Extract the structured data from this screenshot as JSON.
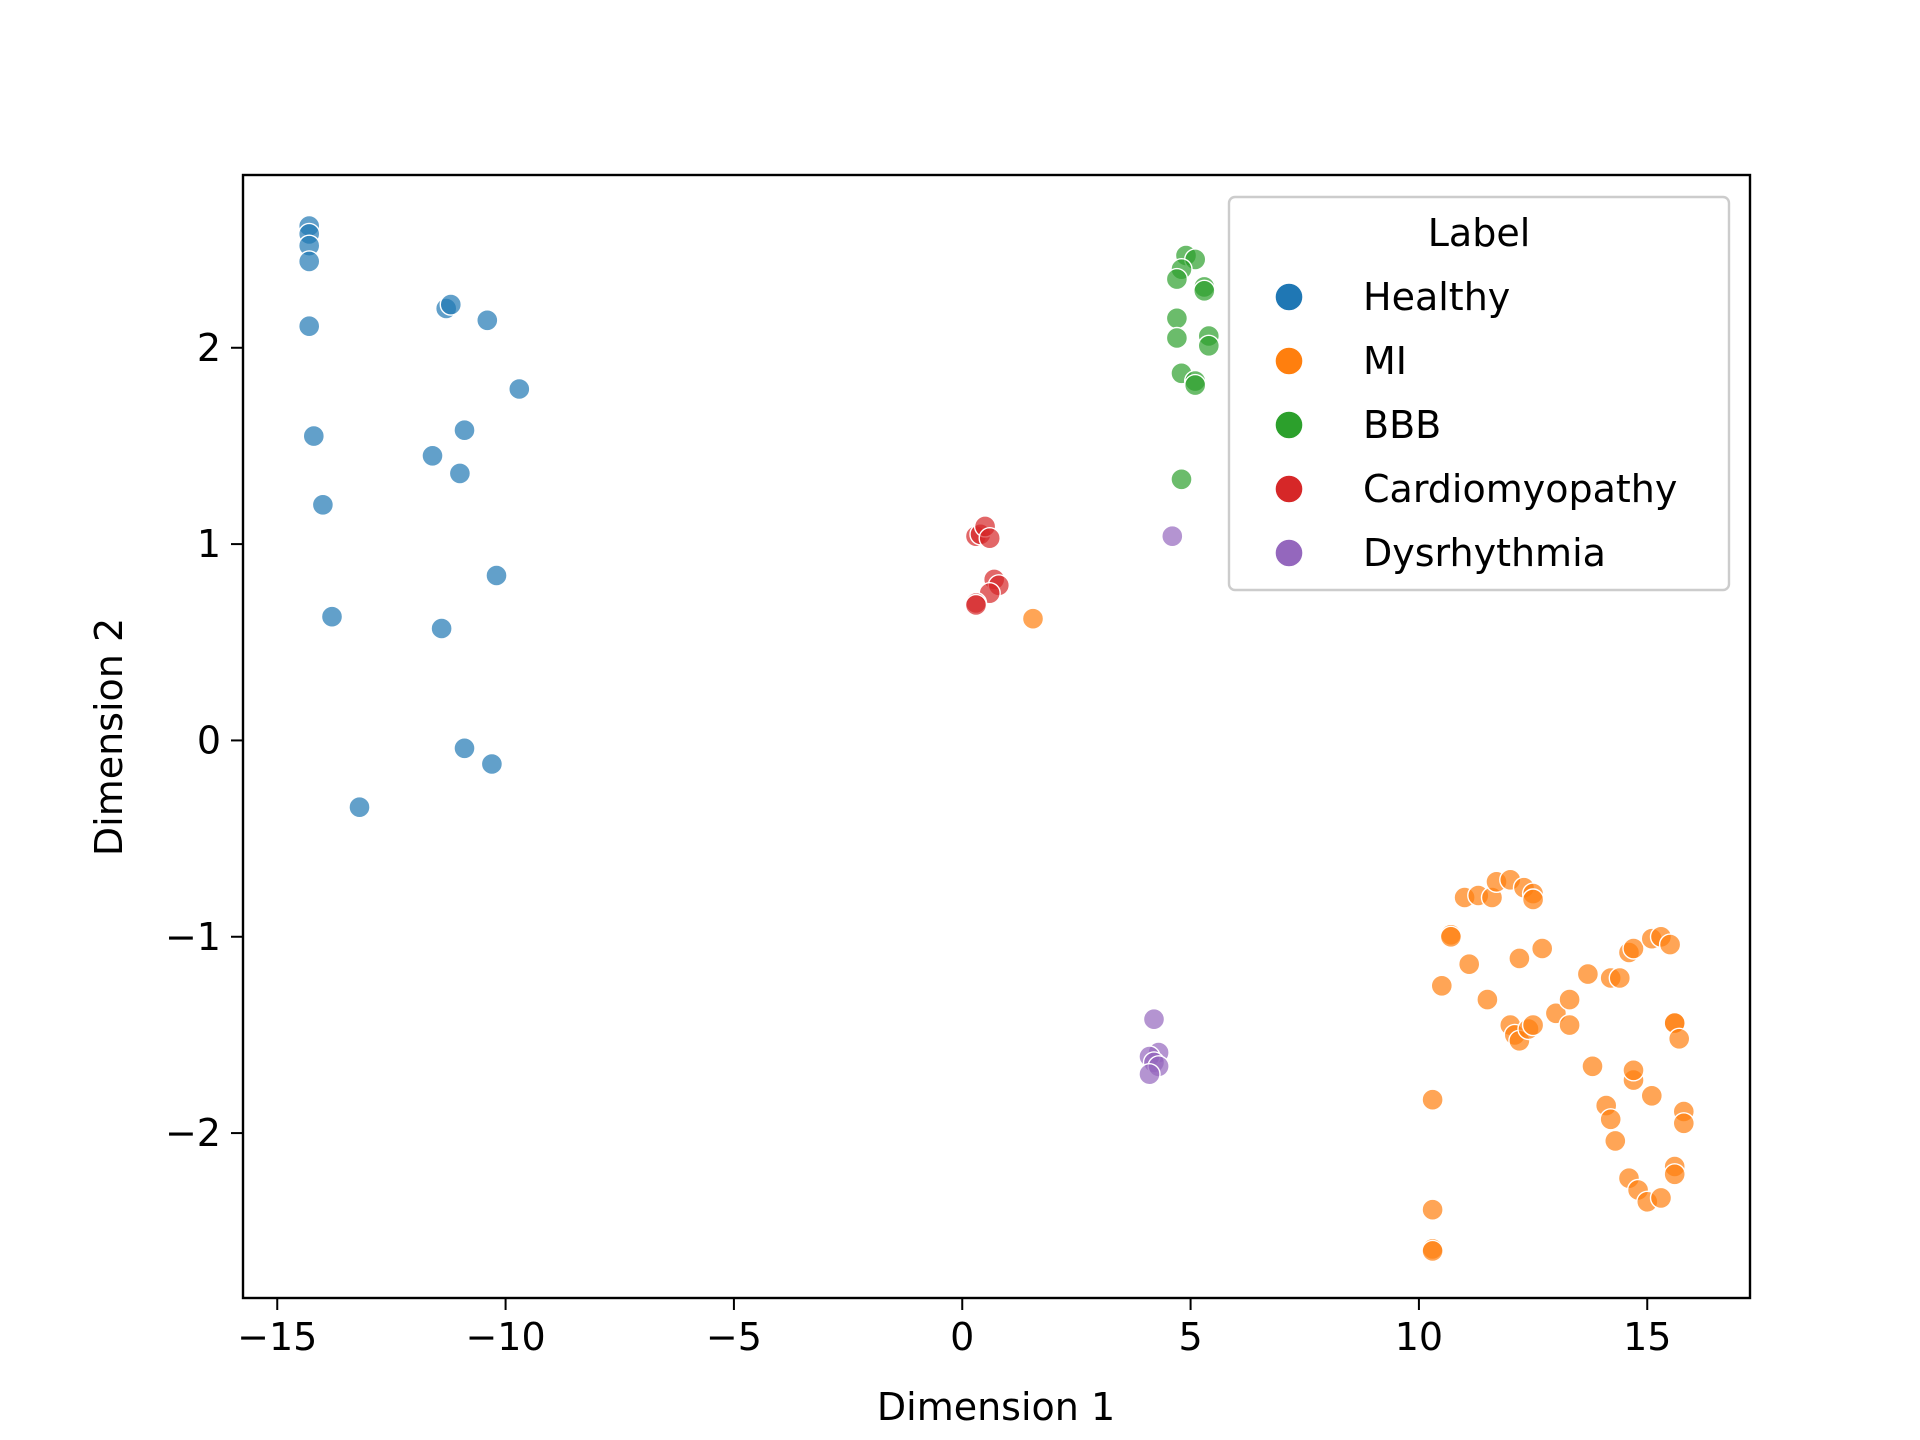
{
  "chart_data": {
    "type": "scatter",
    "title": "",
    "xlabel": "Dimension 1",
    "ylabel": "Dimension 2",
    "xlim": [
      -15.75,
      17.25
    ],
    "ylim": [
      -2.84,
      2.88
    ],
    "xticks": [
      -15,
      -10,
      -5,
      0,
      5,
      10,
      15
    ],
    "yticks": [
      -2,
      -1,
      0,
      1,
      2
    ],
    "grid": false,
    "legend": {
      "title": "Label",
      "position": "top-right"
    },
    "series": [
      {
        "name": "Healthy",
        "color": "#1f77b4",
        "points": [
          [
            -14.3,
            2.62
          ],
          [
            -14.3,
            2.58
          ],
          [
            -14.3,
            2.52
          ],
          [
            -14.3,
            2.44
          ],
          [
            -14.3,
            2.11
          ],
          [
            -14.2,
            1.55
          ],
          [
            -14.0,
            1.2
          ],
          [
            -13.8,
            0.63
          ],
          [
            -13.2,
            -0.34
          ],
          [
            -11.3,
            2.2
          ],
          [
            -11.2,
            2.22
          ],
          [
            -10.4,
            2.14
          ],
          [
            -9.7,
            1.79
          ],
          [
            -11.6,
            1.45
          ],
          [
            -10.9,
            1.58
          ],
          [
            -11.0,
            1.36
          ],
          [
            -10.2,
            0.84
          ],
          [
            -11.4,
            0.57
          ],
          [
            -10.9,
            -0.04
          ],
          [
            -10.3,
            -0.12
          ]
        ]
      },
      {
        "name": "MI",
        "color": "#ff7f0e",
        "points": [
          [
            1.55,
            0.62
          ],
          [
            10.7,
            -0.99
          ],
          [
            10.7,
            -1.0
          ],
          [
            10.5,
            -1.25
          ],
          [
            10.3,
            -1.83
          ],
          [
            10.3,
            -2.39
          ],
          [
            10.3,
            -2.59
          ],
          [
            10.3,
            -2.6
          ],
          [
            11.0,
            -0.8
          ],
          [
            11.3,
            -0.79
          ],
          [
            11.6,
            -0.8
          ],
          [
            11.7,
            -0.72
          ],
          [
            12.0,
            -0.71
          ],
          [
            12.3,
            -0.75
          ],
          [
            12.5,
            -0.78
          ],
          [
            12.5,
            -0.81
          ],
          [
            11.1,
            -1.14
          ],
          [
            11.5,
            -1.32
          ],
          [
            12.2,
            -1.11
          ],
          [
            12.7,
            -1.06
          ],
          [
            12.0,
            -1.45
          ],
          [
            12.1,
            -1.5
          ],
          [
            12.2,
            -1.53
          ],
          [
            12.4,
            -1.47
          ],
          [
            12.5,
            -1.45
          ],
          [
            13.0,
            -1.39
          ],
          [
            13.3,
            -1.32
          ],
          [
            13.3,
            -1.45
          ],
          [
            13.7,
            -1.19
          ],
          [
            13.8,
            -1.66
          ],
          [
            14.2,
            -1.21
          ],
          [
            14.4,
            -1.21
          ],
          [
            14.6,
            -1.08
          ],
          [
            14.7,
            -1.06
          ],
          [
            15.1,
            -1.01
          ],
          [
            15.3,
            -1.0
          ],
          [
            15.5,
            -1.04
          ],
          [
            15.6,
            -1.44
          ],
          [
            15.6,
            -1.44
          ],
          [
            15.7,
            -1.52
          ],
          [
            14.1,
            -1.86
          ],
          [
            14.2,
            -1.93
          ],
          [
            14.3,
            -2.04
          ],
          [
            14.7,
            -1.73
          ],
          [
            14.7,
            -1.68
          ],
          [
            15.1,
            -1.81
          ],
          [
            15.8,
            -1.89
          ],
          [
            15.8,
            -1.95
          ],
          [
            15.6,
            -2.17
          ],
          [
            15.6,
            -2.21
          ],
          [
            14.6,
            -2.23
          ],
          [
            14.8,
            -2.29
          ],
          [
            15.0,
            -2.35
          ],
          [
            15.3,
            -2.33
          ]
        ]
      },
      {
        "name": "BBB",
        "color": "#2ca02c",
        "points": [
          [
            4.9,
            2.47
          ],
          [
            5.1,
            2.45
          ],
          [
            4.8,
            2.4
          ],
          [
            4.7,
            2.35
          ],
          [
            5.3,
            2.31
          ],
          [
            5.3,
            2.29
          ],
          [
            4.7,
            2.15
          ],
          [
            4.7,
            2.05
          ],
          [
            5.4,
            2.06
          ],
          [
            5.4,
            2.01
          ],
          [
            4.8,
            1.87
          ],
          [
            5.1,
            1.83
          ],
          [
            5.1,
            1.81
          ],
          [
            4.8,
            1.33
          ]
        ]
      },
      {
        "name": "Cardiomyopathy",
        "color": "#d62728",
        "points": [
          [
            0.3,
            1.04
          ],
          [
            0.4,
            1.05
          ],
          [
            0.5,
            1.09
          ],
          [
            0.6,
            1.03
          ],
          [
            0.7,
            0.82
          ],
          [
            0.8,
            0.79
          ],
          [
            0.6,
            0.75
          ],
          [
            0.3,
            0.7
          ],
          [
            0.3,
            0.69
          ]
        ]
      },
      {
        "name": "Dysrhythmia",
        "color": "#9467bd",
        "points": [
          [
            4.6,
            1.04
          ],
          [
            4.2,
            -1.42
          ],
          [
            4.3,
            -1.59
          ],
          [
            4.1,
            -1.61
          ],
          [
            4.2,
            -1.64
          ],
          [
            4.3,
            -1.66
          ],
          [
            4.1,
            -1.7
          ]
        ]
      }
    ]
  }
}
